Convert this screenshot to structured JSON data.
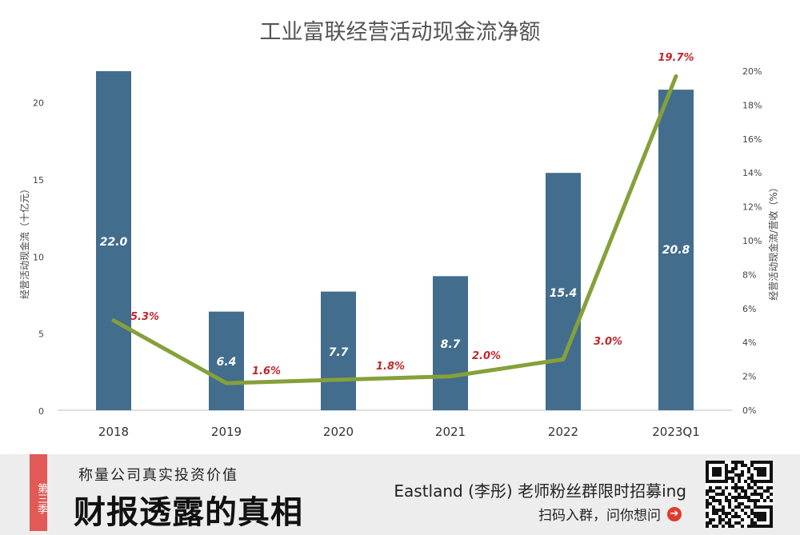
{
  "chart_data": {
    "type": "bar+line",
    "title": "工业富联经营活动现金流净额",
    "categories": [
      "2018",
      "2019",
      "2020",
      "2021",
      "2022",
      "2023Q1"
    ],
    "series": [
      {
        "type": "bar",
        "axis": "left",
        "color": "#426d8c",
        "values": [
          22.0,
          6.4,
          7.7,
          8.7,
          15.4,
          20.8
        ],
        "labels": [
          "22.0",
          "6.4",
          "7.7",
          "8.7",
          "15.4",
          "20.8"
        ]
      },
      {
        "type": "line",
        "axis": "right",
        "color": "#86a03a",
        "values": [
          5.3,
          1.6,
          1.8,
          2.0,
          3.0,
          19.7
        ],
        "labels": [
          "5.3%",
          "1.6%",
          "1.8%",
          "2.0%",
          "3.0%",
          "19.7%"
        ]
      }
    ],
    "ylabel_left": "经营活动现金流（十亿元）",
    "ylabel_right": "经营活动现金流/营收（%）",
    "ylim_left": [
      0,
      22
    ],
    "ylim_right": [
      0,
      20
    ],
    "yticks_left": [
      "0",
      "5",
      "10",
      "15",
      "20"
    ],
    "yticks_right": [
      "0%",
      "2%",
      "4%",
      "6%",
      "8%",
      "10%",
      "12%",
      "14%",
      "16%",
      "18%",
      "20%"
    ],
    "grid": false,
    "legend": "none",
    "label_color": "#c0282d"
  },
  "footer": {
    "season_tab": "第三季",
    "tagline": "称量公司真实投资价值",
    "show_title": "财报透露的真相",
    "recruit_text": "Eastland (李彤) 老师粉丝群限时招募ing",
    "scan_text": "扫码入群，问你想问",
    "arrow_icon": "arrow-right-circle-icon",
    "qr_icon": "qr-code-icon"
  }
}
